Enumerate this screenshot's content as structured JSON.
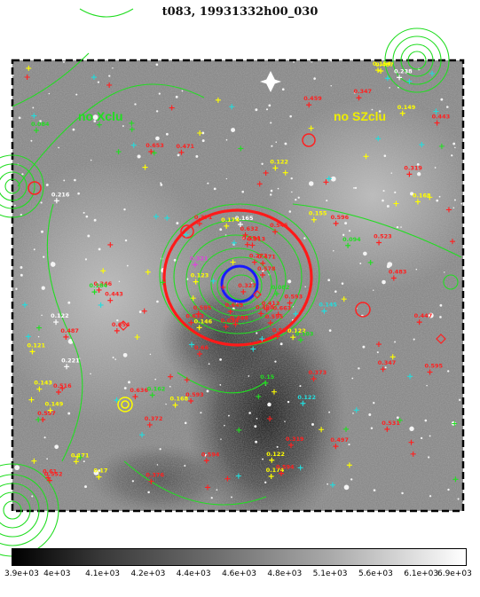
{
  "title": "t083, 19931332h00_030",
  "region_labels": {
    "left": "no Xclu",
    "right": "no SZclu"
  },
  "colorbar": {
    "tick_labels": [
      "3.9e+03",
      "4e+03",
      "4.1e+03",
      "4.2e+03",
      "4.4e+03",
      "4.6e+03",
      "4.8e+03",
      "5.1e+03",
      "5.6e+03",
      "6.1e+03",
      "6.9e+03"
    ]
  },
  "colors": {
    "red": "#ff2020",
    "green": "#22dd22",
    "yellow": "#ffff00",
    "cyan": "#22dddd",
    "magenta": "#dd44dd",
    "white": "#ffffff",
    "blue": "#1a1aff"
  },
  "sources": [
    {
      "t": "0.165",
      "c": "white"
    },
    {
      "t": "0.347",
      "c": "red"
    },
    {
      "t": "0.497",
      "c": "red"
    },
    {
      "t": "0.552",
      "c": "red"
    },
    {
      "t": "0.634",
      "c": "red"
    },
    {
      "t": "0.346",
      "c": "red"
    },
    {
      "t": "0.347",
      "c": "red"
    },
    {
      "t": "0.483",
      "c": "red"
    },
    {
      "t": "0.633",
      "c": "red"
    },
    {
      "t": "0.443",
      "c": "red"
    },
    {
      "t": "0.596",
      "c": "red"
    },
    {
      "t": "0.459",
      "c": "red"
    },
    {
      "t": "0.488",
      "c": "red"
    },
    {
      "t": "0.636",
      "c": "red"
    },
    {
      "t": "0.66",
      "c": "red"
    },
    {
      "t": "0.531",
      "c": "red"
    },
    {
      "t": "0.545",
      "c": "red"
    },
    {
      "t": "0.122",
      "c": "yellow"
    },
    {
      "t": "0.487",
      "c": "yellow"
    },
    {
      "t": "0.663",
      "c": "red"
    },
    {
      "t": "0.594",
      "c": "red"
    },
    {
      "t": "0.145",
      "c": "cyan"
    },
    {
      "t": "0.487",
      "c": "red"
    },
    {
      "t": "0.15",
      "c": "green"
    },
    {
      "t": "0.532",
      "c": "red"
    },
    {
      "t": "0.413",
      "c": "red"
    },
    {
      "t": "0.61",
      "c": "red"
    },
    {
      "t": "0.371",
      "c": "red"
    },
    {
      "t": "0.649",
      "c": "red"
    },
    {
      "t": "0.653",
      "c": "red"
    },
    {
      "t": "0.319",
      "c": "red"
    },
    {
      "t": "0.523",
      "c": "red"
    },
    {
      "t": "0.498",
      "c": "red"
    },
    {
      "t": "0.319",
      "c": "red"
    },
    {
      "t": "0.376",
      "c": "red"
    },
    {
      "t": "0.594",
      "c": "red"
    },
    {
      "t": "0.593",
      "c": "red"
    },
    {
      "t": "0.516",
      "c": "red"
    },
    {
      "t": "0.443",
      "c": "red"
    },
    {
      "t": "0.597",
      "c": "red"
    },
    {
      "t": "0.632",
      "c": "red"
    },
    {
      "t": "0.122",
      "c": "yellow"
    },
    {
      "t": "0.593",
      "c": "red"
    },
    {
      "t": "0.168",
      "c": "yellow"
    },
    {
      "t": "0.595",
      "c": "red"
    },
    {
      "t": "0.372",
      "c": "red"
    },
    {
      "t": "0.373",
      "c": "red"
    },
    {
      "t": "0.174",
      "c": "yellow"
    },
    {
      "t": "0.321",
      "c": "magenta"
    },
    {
      "t": "0.221",
      "c": "white"
    },
    {
      "t": "0.272",
      "c": "red"
    },
    {
      "t": "0.122",
      "c": "white"
    },
    {
      "t": "0.327",
      "c": "red"
    },
    {
      "t": "0.447",
      "c": "red"
    },
    {
      "t": "0.594",
      "c": "red"
    },
    {
      "t": "0.654",
      "c": "red"
    },
    {
      "t": "0.595",
      "c": "red"
    },
    {
      "t": "0.143",
      "c": "yellow"
    },
    {
      "t": "0.122",
      "c": "yellow"
    },
    {
      "t": "0.471",
      "c": "red"
    },
    {
      "t": "0.471",
      "c": "red"
    },
    {
      "t": "0.595",
      "c": "red"
    },
    {
      "t": "0.216",
      "c": "white"
    },
    {
      "t": "0.154",
      "c": "yellow"
    },
    {
      "t": "0.578",
      "c": "red"
    },
    {
      "t": "0.313",
      "c": "red"
    },
    {
      "t": "0.149",
      "c": "yellow"
    },
    {
      "t": "0.121",
      "c": "yellow"
    },
    {
      "t": "0.146",
      "c": "yellow"
    },
    {
      "t": "0.17",
      "c": "yellow"
    },
    {
      "t": "0.168",
      "c": "yellow"
    },
    {
      "t": "0.171",
      "c": "yellow"
    },
    {
      "t": "0.103",
      "c": "green"
    },
    {
      "t": "0.084",
      "c": "green"
    },
    {
      "t": "0.238",
      "c": "white"
    },
    {
      "t": "0.155",
      "c": "yellow"
    },
    {
      "t": "0.174",
      "c": "yellow"
    },
    {
      "t": "0.094",
      "c": "green"
    },
    {
      "t": "0.082",
      "c": "green"
    },
    {
      "t": "0.122",
      "c": "cyan"
    },
    {
      "t": "0.123",
      "c": "yellow"
    },
    {
      "t": "0.149",
      "c": "yellow"
    },
    {
      "t": "0.162",
      "c": "green"
    },
    {
      "t": "0.184",
      "c": "green"
    }
  ]
}
